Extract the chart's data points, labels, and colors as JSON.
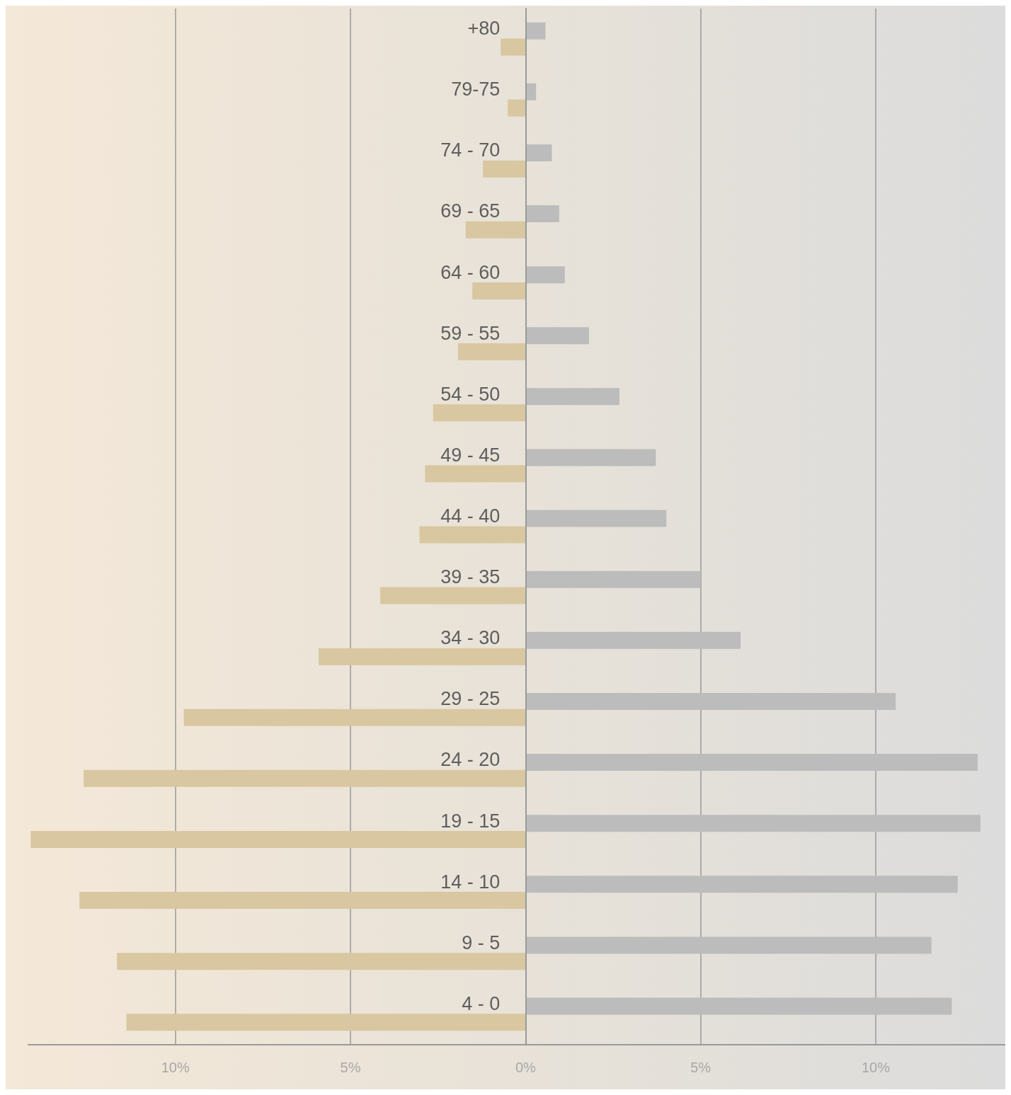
{
  "chart_data": {
    "type": "bar",
    "orientation": "horizontal",
    "categories": [
      "+80",
      "79-75",
      "74 - 70",
      "69 - 65",
      "64 - 60",
      "59 - 55",
      "54 - 50",
      "49 - 45",
      "44 - 40",
      "39 - 35",
      "34 - 30",
      "29 - 25",
      "24 - 20",
      "19 - 15",
      "14 - 10",
      "9 - 5",
      "4 - 0"
    ],
    "series": [
      {
        "color": "#bcbcbc",
        "values": [
          0.57,
          0.3,
          0.75,
          0.96,
          1.12,
          1.81,
          2.68,
          3.72,
          4.02,
          5.0,
          6.14,
          10.57,
          12.91,
          12.99,
          12.34,
          11.59,
          12.17
        ]
      },
      {
        "color": "#d8c7a0",
        "values": [
          -0.71,
          -0.51,
          -1.22,
          -1.71,
          -1.52,
          -1.93,
          -2.64,
          -2.87,
          -3.03,
          -4.15,
          -5.91,
          -9.76,
          -12.62,
          -14.13,
          -12.74,
          -11.67,
          -11.4
        ]
      }
    ],
    "xlim": [
      -14.2,
      13.7
    ],
    "xticks": [
      {
        "value": -10,
        "label": "10%"
      },
      {
        "value": -5,
        "label": "5%"
      },
      {
        "value": 0,
        "label": "0%"
      },
      {
        "value": 5,
        "label": "5%"
      },
      {
        "value": 10,
        "label": "10%"
      }
    ],
    "grid": "x"
  }
}
